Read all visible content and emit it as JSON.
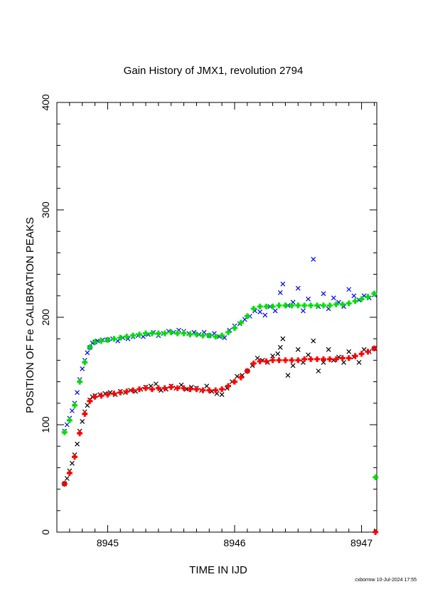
{
  "chart_data": {
    "type": "scatter",
    "title": "Gain History of JMX1, revolution 2794",
    "xlabel": "TIME IN IJD",
    "ylabel": "POSITION OF Fe CALIBRATION PEAKS",
    "xlim": [
      8944.6,
      8947.12
    ],
    "ylim": [
      0,
      400
    ],
    "x_ticks": [
      8945,
      8946,
      8947
    ],
    "y_ticks": [
      0,
      100,
      200,
      300,
      400
    ],
    "grid": false,
    "legend": "none",
    "footer": "cxborrow 10-Jul-2024 17:55",
    "series": [
      {
        "marker": "x",
        "color": "#0000ff",
        "points": [
          [
            8944.66,
            94
          ],
          [
            8944.68,
            100
          ],
          [
            8944.7,
            106
          ],
          [
            8944.72,
            113
          ],
          [
            8944.74,
            120
          ],
          [
            8944.76,
            130
          ],
          [
            8944.78,
            142
          ],
          [
            8944.8,
            152
          ],
          [
            8944.82,
            160
          ],
          [
            8944.84,
            167
          ],
          [
            8944.86,
            172
          ],
          [
            8944.88,
            176
          ],
          [
            8944.9,
            177
          ],
          [
            8944.92,
            178
          ],
          [
            8944.96,
            179
          ],
          [
            8945.0,
            179
          ],
          [
            8945.04,
            180
          ],
          [
            8945.08,
            178
          ],
          [
            8945.12,
            181
          ],
          [
            8945.16,
            180
          ],
          [
            8945.2,
            182
          ],
          [
            8945.24,
            183
          ],
          [
            8945.28,
            182
          ],
          [
            8945.32,
            184
          ],
          [
            8945.36,
            186
          ],
          [
            8945.4,
            183
          ],
          [
            8945.44,
            185
          ],
          [
            8945.48,
            187
          ],
          [
            8945.52,
            186
          ],
          [
            8945.56,
            188
          ],
          [
            8945.6,
            187
          ],
          [
            8945.64,
            185
          ],
          [
            8945.68,
            186
          ],
          [
            8945.72,
            184
          ],
          [
            8945.76,
            186
          ],
          [
            8945.8,
            183
          ],
          [
            8945.84,
            185
          ],
          [
            8945.88,
            182
          ],
          [
            8945.92,
            181
          ],
          [
            8945.96,
            188
          ],
          [
            8946.0,
            192
          ],
          [
            8946.04,
            194
          ],
          [
            8946.08,
            198
          ],
          [
            8946.12,
            201
          ],
          [
            8946.16,
            206
          ],
          [
            8946.2,
            205
          ],
          [
            8946.24,
            202
          ],
          [
            8946.28,
            210
          ],
          [
            8946.32,
            206
          ],
          [
            8946.36,
            223
          ],
          [
            8946.38,
            231
          ],
          [
            8946.42,
            211
          ],
          [
            8946.46,
            214
          ],
          [
            8946.5,
            227
          ],
          [
            8946.54,
            206
          ],
          [
            8946.58,
            217
          ],
          [
            8946.62,
            254
          ],
          [
            8946.66,
            210
          ],
          [
            8946.7,
            222
          ],
          [
            8946.74,
            208
          ],
          [
            8946.78,
            218
          ],
          [
            8946.82,
            214
          ],
          [
            8946.86,
            210
          ],
          [
            8946.9,
            226
          ],
          [
            8946.94,
            220
          ],
          [
            8946.98,
            216
          ],
          [
            8947.02,
            220
          ],
          [
            8947.06,
            218
          ],
          [
            8947.1,
            221
          ]
        ]
      },
      {
        "marker": "+",
        "color": "#00dd00",
        "points": [
          [
            8944.66,
            93
          ],
          [
            8944.7,
            104
          ],
          [
            8944.74,
            118
          ],
          [
            8944.78,
            140
          ],
          [
            8944.82,
            158
          ],
          [
            8944.86,
            172
          ],
          [
            8944.9,
            177
          ],
          [
            8944.95,
            178
          ],
          [
            8945.0,
            179
          ],
          [
            8945.05,
            180
          ],
          [
            8945.1,
            181
          ],
          [
            8945.15,
            182
          ],
          [
            8945.2,
            183
          ],
          [
            8945.25,
            184
          ],
          [
            8945.3,
            185
          ],
          [
            8945.35,
            185
          ],
          [
            8945.4,
            185
          ],
          [
            8945.45,
            185
          ],
          [
            8945.5,
            186
          ],
          [
            8945.55,
            185
          ],
          [
            8945.6,
            185
          ],
          [
            8945.65,
            184
          ],
          [
            8945.7,
            184
          ],
          [
            8945.75,
            183
          ],
          [
            8945.8,
            183
          ],
          [
            8945.85,
            182
          ],
          [
            8945.9,
            183
          ],
          [
            8945.95,
            186
          ],
          [
            8946.0,
            190
          ],
          [
            8946.05,
            195
          ],
          [
            8946.1,
            201
          ],
          [
            8946.15,
            208
          ],
          [
            8946.2,
            210
          ],
          [
            8946.25,
            210
          ],
          [
            8946.3,
            210
          ],
          [
            8946.35,
            211
          ],
          [
            8946.4,
            211
          ],
          [
            8946.45,
            211
          ],
          [
            8946.5,
            211
          ],
          [
            8946.55,
            211
          ],
          [
            8946.6,
            211
          ],
          [
            8946.65,
            211
          ],
          [
            8946.7,
            211
          ],
          [
            8946.75,
            211
          ],
          [
            8946.8,
            212
          ],
          [
            8946.85,
            212
          ],
          [
            8946.9,
            213
          ],
          [
            8946.95,
            215
          ],
          [
            8947.0,
            217
          ],
          [
            8947.05,
            219
          ],
          [
            8947.1,
            222
          ],
          [
            8947.11,
            51
          ]
        ]
      },
      {
        "marker": "x",
        "color": "#000000",
        "points": [
          [
            8944.66,
            45
          ],
          [
            8944.68,
            50
          ],
          [
            8944.7,
            57
          ],
          [
            8944.72,
            64
          ],
          [
            8944.74,
            72
          ],
          [
            8944.76,
            82
          ],
          [
            8944.78,
            94
          ],
          [
            8944.8,
            103
          ],
          [
            8944.82,
            112
          ],
          [
            8944.84,
            118
          ],
          [
            8944.86,
            123
          ],
          [
            8944.88,
            126
          ],
          [
            8944.9,
            127
          ],
          [
            8944.94,
            128
          ],
          [
            8944.98,
            129
          ],
          [
            8945.02,
            130
          ],
          [
            8945.06,
            128
          ],
          [
            8945.1,
            131
          ],
          [
            8945.14,
            130
          ],
          [
            8945.18,
            132
          ],
          [
            8945.22,
            131
          ],
          [
            8945.26,
            133
          ],
          [
            8945.3,
            135
          ],
          [
            8945.34,
            136
          ],
          [
            8945.38,
            138
          ],
          [
            8945.42,
            132
          ],
          [
            8945.46,
            133
          ],
          [
            8945.5,
            136
          ],
          [
            8945.54,
            134
          ],
          [
            8945.58,
            137
          ],
          [
            8945.62,
            133
          ],
          [
            8945.66,
            135
          ],
          [
            8945.7,
            134
          ],
          [
            8945.74,
            132
          ],
          [
            8945.78,
            136
          ],
          [
            8945.82,
            131
          ],
          [
            8945.86,
            129
          ],
          [
            8945.9,
            128
          ],
          [
            8945.94,
            134
          ],
          [
            8945.98,
            140
          ],
          [
            8946.02,
            145
          ],
          [
            8946.06,
            146
          ],
          [
            8946.1,
            150
          ],
          [
            8946.14,
            155
          ],
          [
            8946.18,
            162
          ],
          [
            8946.22,
            160
          ],
          [
            8946.26,
            158
          ],
          [
            8946.3,
            164
          ],
          [
            8946.34,
            166
          ],
          [
            8946.36,
            172
          ],
          [
            8946.38,
            180
          ],
          [
            8946.42,
            146
          ],
          [
            8946.46,
            155
          ],
          [
            8946.5,
            170
          ],
          [
            8946.54,
            158
          ],
          [
            8946.58,
            165
          ],
          [
            8946.62,
            178
          ],
          [
            8946.66,
            150
          ],
          [
            8946.7,
            158
          ],
          [
            8946.74,
            170
          ],
          [
            8946.78,
            160
          ],
          [
            8946.82,
            163
          ],
          [
            8946.86,
            158
          ],
          [
            8946.9,
            168
          ],
          [
            8946.94,
            163
          ],
          [
            8946.98,
            158
          ],
          [
            8947.02,
            170
          ],
          [
            8947.06,
            168
          ],
          [
            8947.1,
            171
          ]
        ]
      },
      {
        "marker": "+",
        "color": "#ff0000",
        "points": [
          [
            8944.66,
            45
          ],
          [
            8944.7,
            55
          ],
          [
            8944.74,
            70
          ],
          [
            8944.78,
            92
          ],
          [
            8944.82,
            110
          ],
          [
            8944.86,
            122
          ],
          [
            8944.9,
            126
          ],
          [
            8944.95,
            127
          ],
          [
            8945.0,
            128
          ],
          [
            8945.05,
            129
          ],
          [
            8945.1,
            130
          ],
          [
            8945.15,
            131
          ],
          [
            8945.2,
            132
          ],
          [
            8945.25,
            133
          ],
          [
            8945.3,
            134
          ],
          [
            8945.35,
            133
          ],
          [
            8945.4,
            134
          ],
          [
            8945.45,
            134
          ],
          [
            8945.5,
            135
          ],
          [
            8945.55,
            134
          ],
          [
            8945.6,
            134
          ],
          [
            8945.65,
            133
          ],
          [
            8945.7,
            133
          ],
          [
            8945.75,
            132
          ],
          [
            8945.8,
            132
          ],
          [
            8945.85,
            132
          ],
          [
            8945.9,
            133
          ],
          [
            8945.95,
            136
          ],
          [
            8946.0,
            140
          ],
          [
            8946.05,
            144
          ],
          [
            8946.1,
            150
          ],
          [
            8946.15,
            157
          ],
          [
            8946.2,
            159
          ],
          [
            8946.25,
            159
          ],
          [
            8946.3,
            160
          ],
          [
            8946.35,
            160
          ],
          [
            8946.4,
            160
          ],
          [
            8946.45,
            160
          ],
          [
            8946.5,
            160
          ],
          [
            8946.55,
            161
          ],
          [
            8946.6,
            161
          ],
          [
            8946.65,
            161
          ],
          [
            8946.7,
            161
          ],
          [
            8946.75,
            161
          ],
          [
            8946.8,
            161
          ],
          [
            8946.85,
            162
          ],
          [
            8946.9,
            162
          ],
          [
            8946.95,
            164
          ],
          [
            8947.0,
            166
          ],
          [
            8947.05,
            168
          ],
          [
            8947.1,
            171
          ],
          [
            8947.11,
            0
          ]
        ]
      }
    ]
  }
}
